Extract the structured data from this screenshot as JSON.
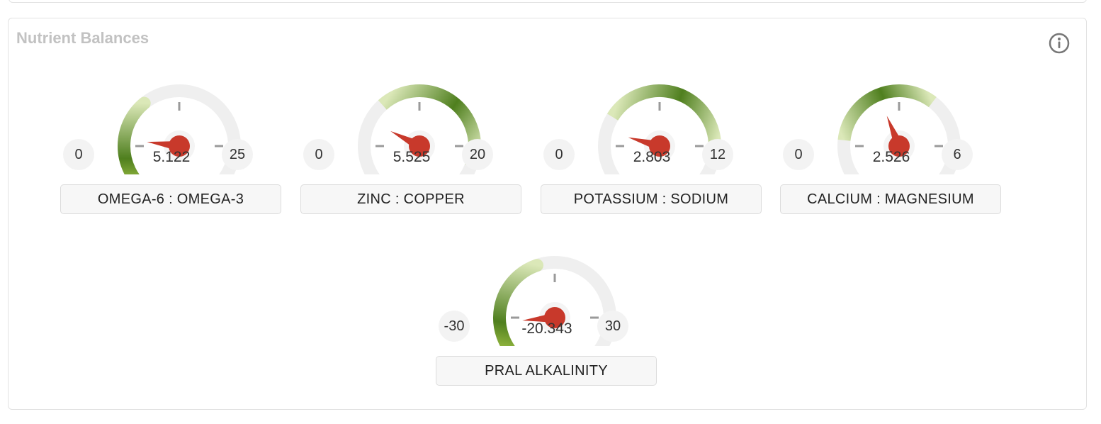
{
  "panel": {
    "title": "Nutrient Balances",
    "info_icon": "info-circle-icon"
  },
  "gauges": [
    {
      "name": "OMEGA-6 : OMEGA-3",
      "min": 0,
      "max": 25,
      "min_label": "0",
      "max_label": "25",
      "value": 5.122,
      "value_label": "5.122",
      "green_from": 0,
      "green_to": 9
    },
    {
      "name": "ZINC : COPPER",
      "min": 0,
      "max": 20,
      "min_label": "0",
      "max_label": "20",
      "value": 5.525,
      "value_label": "5.525",
      "green_from": 7,
      "green_to": 18
    },
    {
      "name": "POTASSIUM : SODIUM",
      "min": 0,
      "max": 12,
      "min_label": "0",
      "max_label": "12",
      "value": 2.803,
      "value_label": "2.803",
      "green_from": 3.5,
      "green_to": 10
    },
    {
      "name": "CALCIUM : MAGNESIUM",
      "min": 0,
      "max": 6,
      "min_label": "0",
      "max_label": "6",
      "value": 2.526,
      "value_label": "2.526",
      "green_from": 1.2,
      "green_to": 3.8
    },
    {
      "name": "PRAL ALKALINITY",
      "min": -30,
      "max": 30,
      "min_label": "-30",
      "max_label": "30",
      "value": -20.343,
      "value_label": "-20.343",
      "green_from": -30,
      "green_to": -4
    }
  ],
  "colors": {
    "needle": "#c8392b",
    "track": "#efefef",
    "green_dark": "#4f7f1e",
    "green_light": "#dbe8b8",
    "tick": "#9a9a9a"
  }
}
